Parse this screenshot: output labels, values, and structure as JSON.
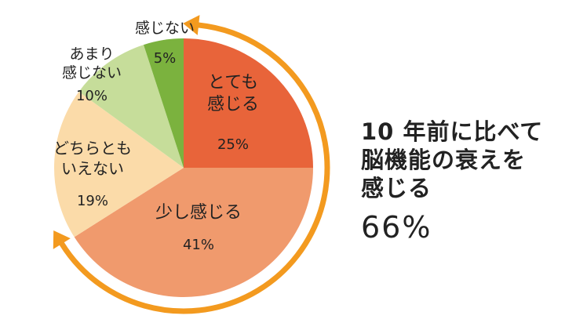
{
  "chart_data": {
    "type": "pie",
    "title": "",
    "slices": [
      {
        "label_lines": [
          "とても",
          "感じる"
        ],
        "value": 25,
        "value_text": "25%",
        "color": "#e8643a"
      },
      {
        "label_lines": [
          "少し感じる"
        ],
        "value": 41,
        "value_text": "41%",
        "color": "#f09a6d"
      },
      {
        "label_lines": [
          "どちらとも",
          "いえない"
        ],
        "value": 19,
        "value_text": "19%",
        "color": "#fbdba9"
      },
      {
        "label_lines": [
          "あまり",
          "感じない"
        ],
        "value": 10,
        "value_text": "10%",
        "color": "#c6dd9a"
      },
      {
        "label_lines": [
          "感じない"
        ],
        "value": 5,
        "value_text": "5%",
        "color": "#7bb23e"
      }
    ],
    "start_angle_deg": 0,
    "direction": "clockwise"
  },
  "annotation": {
    "lines": [
      "10 年前に比べて",
      "脳機能の衰えを",
      "感じる"
    ],
    "value_text": "66%",
    "arrow_color": "#f39a1f"
  }
}
